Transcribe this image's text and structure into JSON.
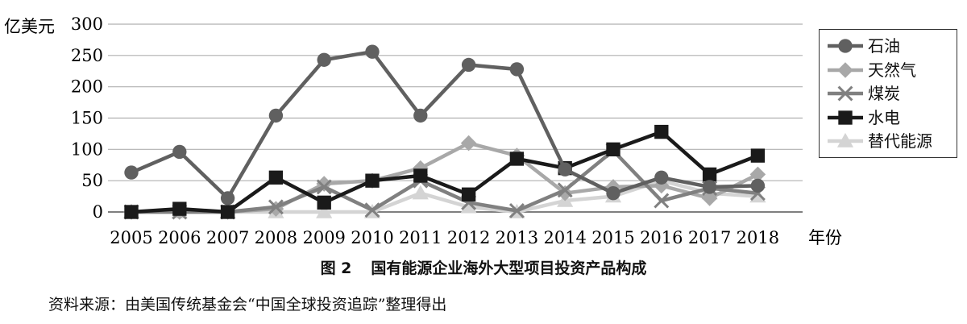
{
  "chart_data": {
    "type": "line",
    "title": "",
    "ylabel": "亿美元",
    "xlabel": "年份",
    "ylim": [
      0,
      300
    ],
    "yticks": [
      0,
      50,
      100,
      150,
      200,
      250,
      300
    ],
    "grid": "horizontal",
    "legend_position": "right",
    "categories": [
      "2005",
      "2006",
      "2007",
      "2008",
      "2009",
      "2010",
      "2011",
      "2012",
      "2013",
      "2014",
      "2015",
      "2016",
      "2017",
      "2018"
    ],
    "series": [
      {
        "name": "石油",
        "color": "#606060",
        "marker": "circle",
        "values": [
          63,
          96,
          22,
          154,
          243,
          256,
          154,
          235,
          228,
          68,
          30,
          55,
          40,
          42
        ]
      },
      {
        "name": "天然气",
        "color": "#a8a8a8",
        "marker": "diamond",
        "values": [
          0,
          0,
          0,
          5,
          45,
          50,
          70,
          110,
          90,
          30,
          40,
          42,
          22,
          60
        ]
      },
      {
        "name": "煤炭",
        "color": "#808080",
        "marker": "x",
        "values": [
          0,
          0,
          0,
          8,
          40,
          3,
          50,
          15,
          2,
          35,
          98,
          18,
          38,
          30
        ]
      },
      {
        "name": "水电",
        "color": "#1a1a1a",
        "marker": "square",
        "values": [
          0,
          5,
          0,
          55,
          15,
          50,
          58,
          28,
          85,
          70,
          100,
          128,
          60,
          90
        ]
      },
      {
        "name": "替代能源",
        "color": "#d4d4d4",
        "marker": "triangle",
        "values": [
          0,
          0,
          0,
          0,
          0,
          0,
          30,
          8,
          0,
          18,
          25,
          50,
          30,
          25
        ]
      }
    ]
  },
  "caption": {
    "figure_no": "图 2",
    "text": "国有能源企业海外大型项目投资产品构成"
  },
  "source_note": "资料来源：由美国传统基金会“中国全球投资追踪”整理得出"
}
